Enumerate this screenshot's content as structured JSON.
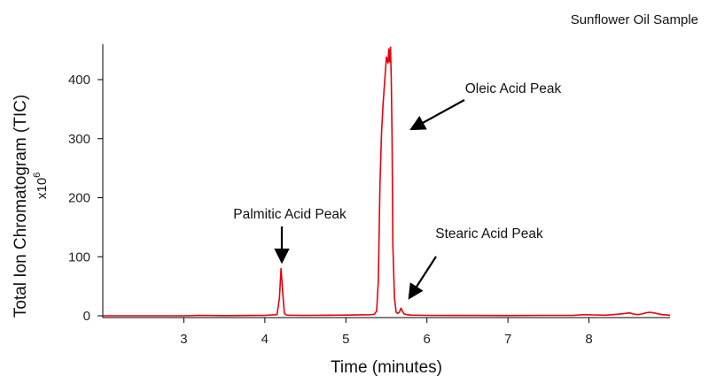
{
  "sample_label": "Sunflower Oil Sample",
  "chart_data": {
    "type": "line",
    "xlabel": "Time (minutes)",
    "ylabel": "Total Ion Chromatogram (TIC)",
    "y_multiplier_base": "x10",
    "y_multiplier_exp": "6",
    "xlim": [
      2.0,
      9.0
    ],
    "ylim": [
      0,
      460
    ],
    "x_ticks": [
      3,
      4,
      5,
      6,
      7,
      8
    ],
    "y_ticks": [
      0,
      100,
      200,
      300,
      400
    ],
    "grid": false,
    "series": [
      {
        "color": "#e8000b",
        "x": [
          2.0,
          2.5,
          3.0,
          3.2,
          3.5,
          3.8,
          4.0,
          4.15,
          4.18,
          4.2,
          4.22,
          4.24,
          4.26,
          4.3,
          4.5,
          4.8,
          5.0,
          5.2,
          5.3,
          5.35,
          5.38,
          5.4,
          5.42,
          5.44,
          5.46,
          5.48,
          5.5,
          5.52,
          5.53,
          5.54,
          5.55,
          5.56,
          5.57,
          5.58,
          5.6,
          5.62,
          5.64,
          5.66,
          5.68,
          5.7,
          5.72,
          5.75,
          5.8,
          6.0,
          6.3,
          6.6,
          7.0,
          7.4,
          7.8,
          7.95,
          8.05,
          8.2,
          8.35,
          8.45,
          8.5,
          8.55,
          8.6,
          8.65,
          8.7,
          8.75,
          8.8,
          8.9,
          9.0
        ],
        "y": [
          0,
          0,
          0,
          0.8,
          0.3,
          0.6,
          0.8,
          2,
          30,
          80,
          40,
          5,
          1.5,
          1,
          0.8,
          1,
          1.2,
          1.6,
          1.8,
          2.5,
          8,
          60,
          220,
          310,
          360,
          400,
          438,
          428,
          452,
          430,
          455,
          400,
          300,
          120,
          30,
          6,
          4,
          6,
          13,
          7,
          3,
          2,
          1.2,
          0.8,
          0.6,
          0.6,
          0.5,
          0.8,
          0.8,
          2,
          1.5,
          1,
          2.5,
          4,
          5,
          3,
          2,
          3,
          5,
          6,
          5,
          2,
          1
        ]
      }
    ],
    "annotations": [
      {
        "label": "Palmitic Acid Peak"
      },
      {
        "label": "Oleic Acid Peak"
      },
      {
        "label": "Stearic Acid Peak"
      }
    ]
  }
}
